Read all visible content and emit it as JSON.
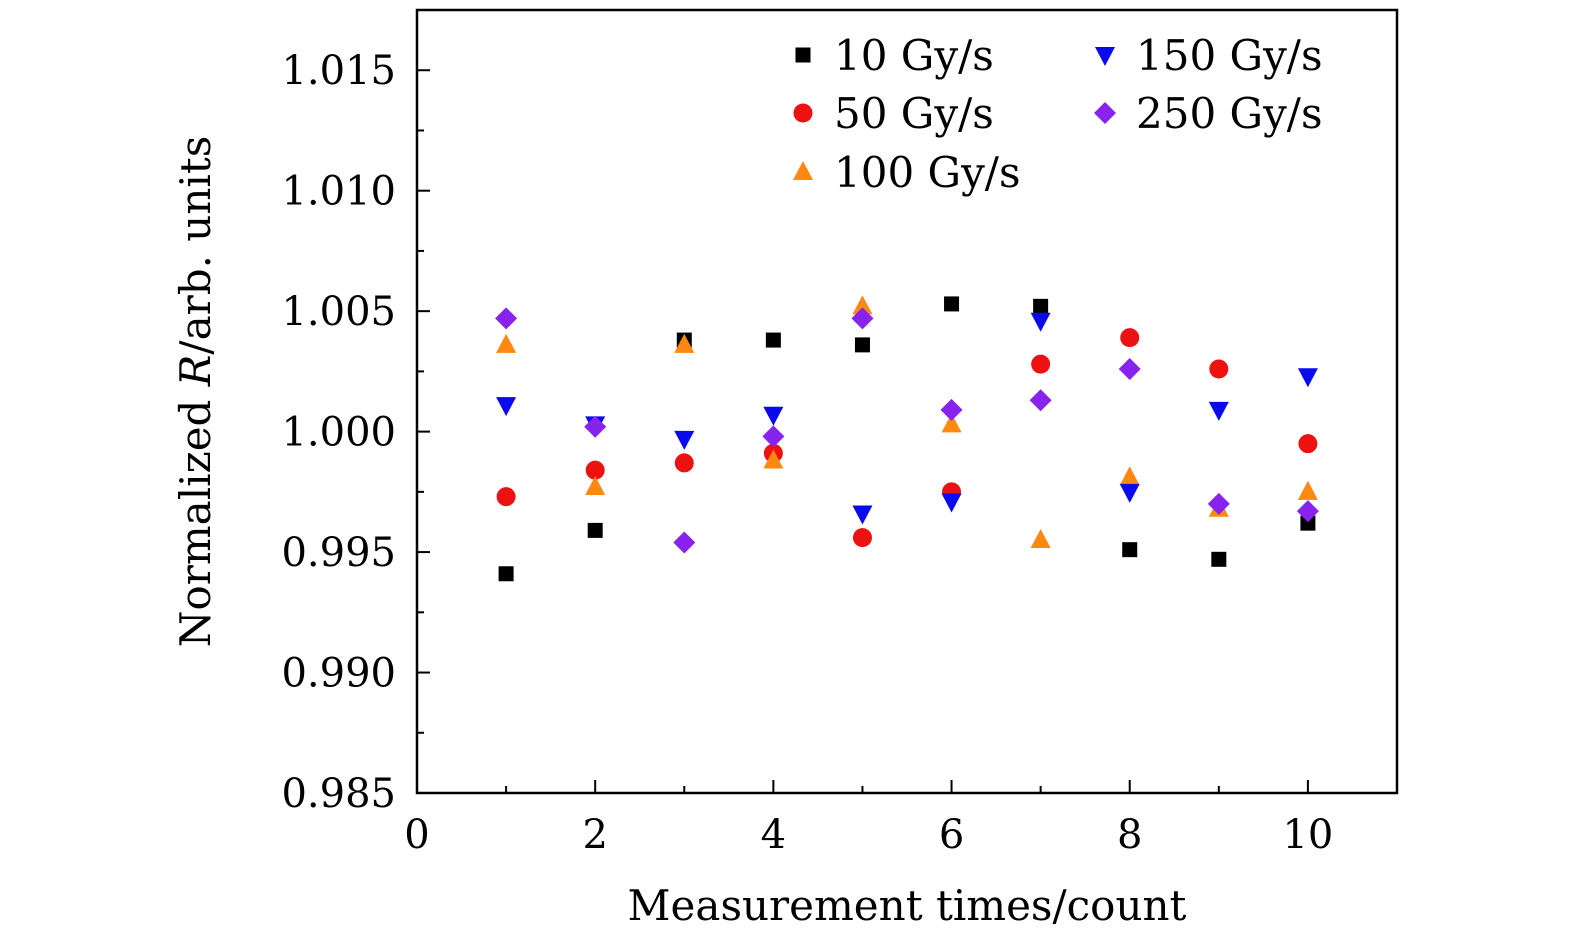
{
  "chart_data": {
    "type": "scatter",
    "title": "",
    "xlabel": "Measurement times/count",
    "ylabel": "Normalized R/arb. units",
    "ylabel_parts": {
      "prefix": "Normalized ",
      "var": "R",
      "suffix": "/arb. units"
    },
    "xlim": [
      0,
      11
    ],
    "ylim": [
      0.985,
      1.0175
    ],
    "x_ticks": [
      0,
      2,
      4,
      6,
      8,
      10
    ],
    "x_tick_labels": [
      "0",
      "2",
      "4",
      "6",
      "8",
      "10"
    ],
    "y_ticks": [
      0.985,
      0.99,
      0.995,
      1.0,
      1.005,
      1.01,
      1.015
    ],
    "y_tick_labels": [
      "0.985",
      "0.990",
      "0.995",
      "1.000",
      "1.005",
      "1.010",
      "1.015"
    ],
    "grid": false,
    "legend_position": "top-right",
    "x": [
      1,
      2,
      3,
      4,
      5,
      6,
      7,
      8,
      9,
      10
    ],
    "series": [
      {
        "name": "10 Gy/s",
        "marker": "square",
        "color": "#000000",
        "values": [
          0.9941,
          0.9959,
          1.0038,
          1.0038,
          1.0036,
          1.0053,
          1.0052,
          0.9951,
          0.9947,
          0.9962
        ]
      },
      {
        "name": "50 Gy/s",
        "marker": "circle",
        "color": "#ee1111",
        "values": [
          0.9973,
          0.9984,
          0.9987,
          0.9991,
          0.9956,
          0.9975,
          1.0028,
          1.0039,
          1.0026,
          0.9995
        ]
      },
      {
        "name": "100 Gy/s",
        "marker": "triangle-up",
        "color": "#ff8811",
        "values": [
          1.0036,
          0.9977,
          1.0036,
          0.9988,
          1.0052,
          1.0003,
          0.9955,
          0.9981,
          0.9968,
          0.9975
        ]
      },
      {
        "name": "150 Gy/s",
        "marker": "triangle-down",
        "color": "#0a0aee",
        "values": [
          1.0011,
          1.0003,
          0.9997,
          1.0007,
          0.9966,
          0.9971,
          1.0046,
          0.9975,
          1.0009,
          1.0023
        ]
      },
      {
        "name": "250 Gy/s",
        "marker": "diamond",
        "color": "#8822ee",
        "values": [
          1.0047,
          1.0002,
          0.9954,
          0.9998,
          1.0047,
          1.0009,
          1.0013,
          1.0026,
          0.997,
          0.9967
        ]
      }
    ]
  }
}
